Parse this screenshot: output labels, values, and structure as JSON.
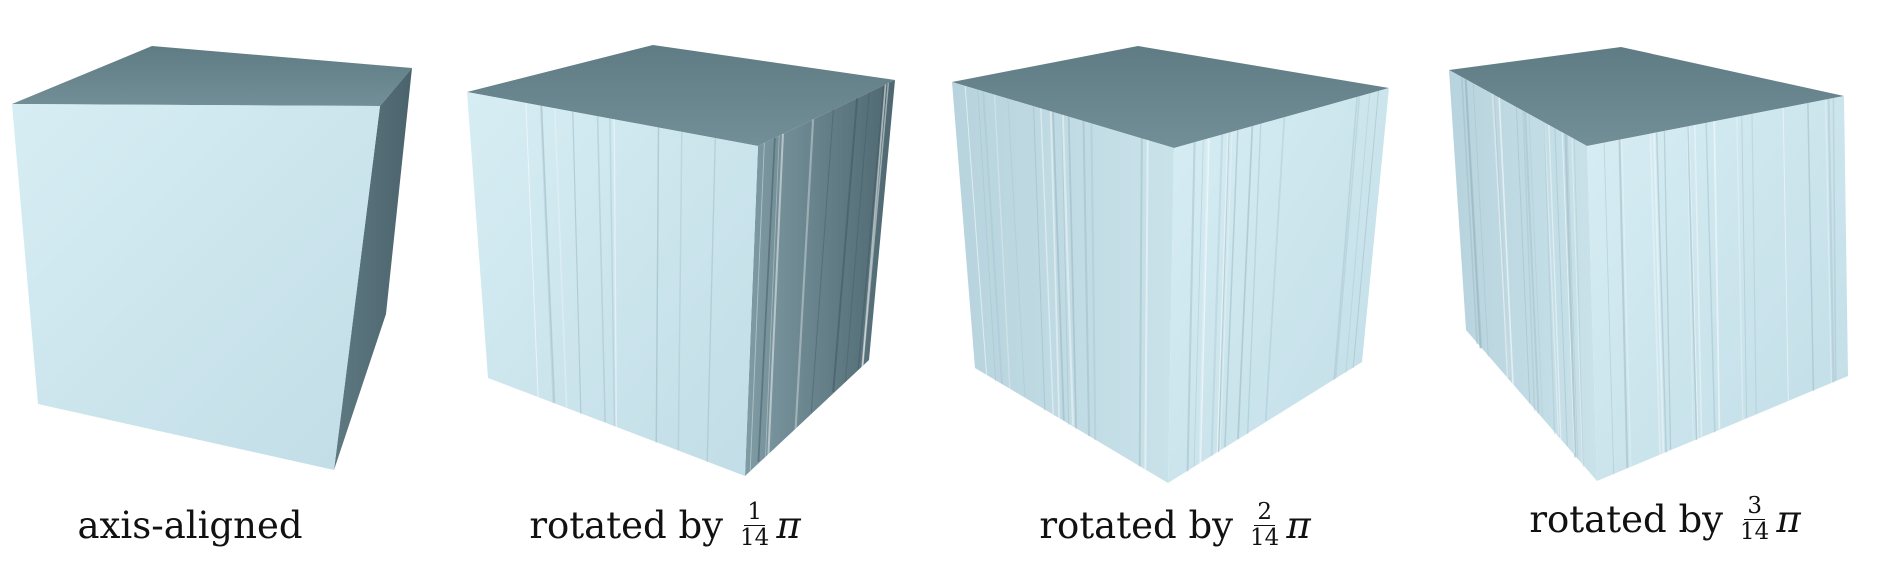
{
  "colors": {
    "background": "#ffffff",
    "front_face": "#cde6ee",
    "side_face": "#56707a",
    "top_face": "#6c8991",
    "text": "#111111"
  },
  "panels": [
    {
      "caption_text": "axis-aligned",
      "caption_fraction": null,
      "wrinkle_level": 0
    },
    {
      "caption_text": "rotated by",
      "caption_fraction": {
        "numerator": "1",
        "denominator": "14"
      },
      "caption_symbol": "π",
      "wrinkle_level": 1
    },
    {
      "caption_text": "rotated by",
      "caption_fraction": {
        "numerator": "2",
        "denominator": "14"
      },
      "caption_symbol": "π",
      "wrinkle_level": 2
    },
    {
      "caption_text": "rotated by",
      "caption_fraction": {
        "numerator": "3",
        "denominator": "14"
      },
      "caption_symbol": "π",
      "wrinkle_level": 3
    }
  ]
}
